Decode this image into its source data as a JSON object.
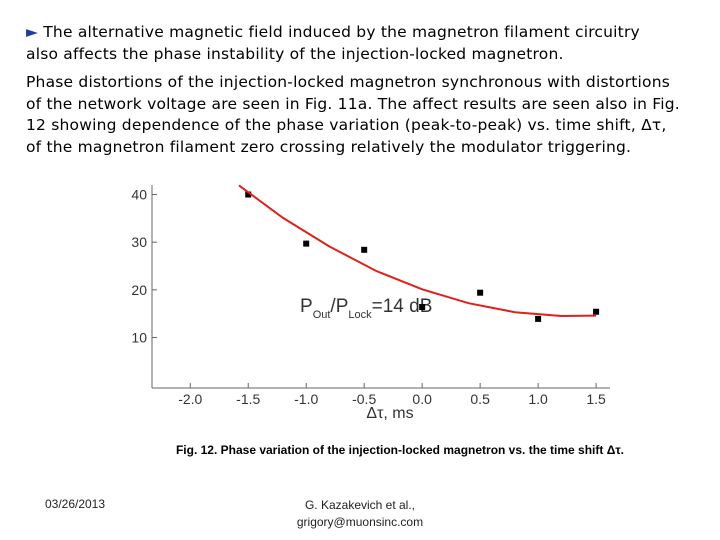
{
  "header": {
    "bullet": "►",
    "lines": [
      "The alternative magnetic field induced by the magnetron filament circuitry",
      "also affects the phase instability of the injection-locked magnetron."
    ]
  },
  "body": {
    "lines": [
      "Phase distortions of the injection-locked magnetron synchronous with distortions",
      "of the network voltage are seen in Fig. 11a. The affect results are seen also in Fig.",
      "12 showing dependence of the phase variation (peak-to-peak) vs. time shift, Δτ,",
      "of the magnetron filament zero crossing relatively the modulator triggering."
    ]
  },
  "chart_data": {
    "type": "scatter",
    "x_label": "Δτ, ms",
    "annotation": [
      "P",
      "Out",
      "/P",
      "Lock",
      "=14 dB"
    ],
    "xlim": [
      -2.33,
      1.62
    ],
    "ylim": [
      -0.6,
      42
    ],
    "xticks": [
      {
        "value": -2,
        "label": "-2.0"
      },
      {
        "value": -1.5,
        "label": "-1.5"
      },
      {
        "value": -1,
        "label": "-1.0"
      },
      {
        "value": -0.5,
        "label": "-0.5"
      },
      {
        "value": 0,
        "label": "0.0"
      },
      {
        "value": 0.5,
        "label": "0.5"
      },
      {
        "value": 1,
        "label": "1.0"
      },
      {
        "value": 1.5,
        "label": "1.5"
      }
    ],
    "yticks": [
      10,
      20,
      30,
      40
    ],
    "series": [
      {
        "type": "scatter",
        "color": "#000000",
        "x": [
          -1.5,
          -1.0,
          -0.5,
          0.0,
          0.5,
          1.0,
          1.5
        ],
        "values": [
          40,
          29.7,
          28.4,
          16.4,
          19.4,
          13.9,
          15.4
        ]
      },
      {
        "type": "line",
        "color": "#e0201b",
        "x": [
          -1.58,
          -1.2,
          -0.8,
          -0.4,
          0,
          0.4,
          0.8,
          1.2,
          1.5
        ],
        "values": [
          41.9,
          35.1,
          29.1,
          24.0,
          20.1,
          17.2,
          15.3,
          14.5,
          14.6
        ]
      }
    ]
  },
  "caption": "Fig. 12. Phase variation of the injection-locked magnetron vs. the time shift Δτ.",
  "footer": {
    "date": "03/26/2013",
    "author": [
      "G. Kazakevich et al.,",
      "grigory@muonsinc.com"
    ]
  }
}
